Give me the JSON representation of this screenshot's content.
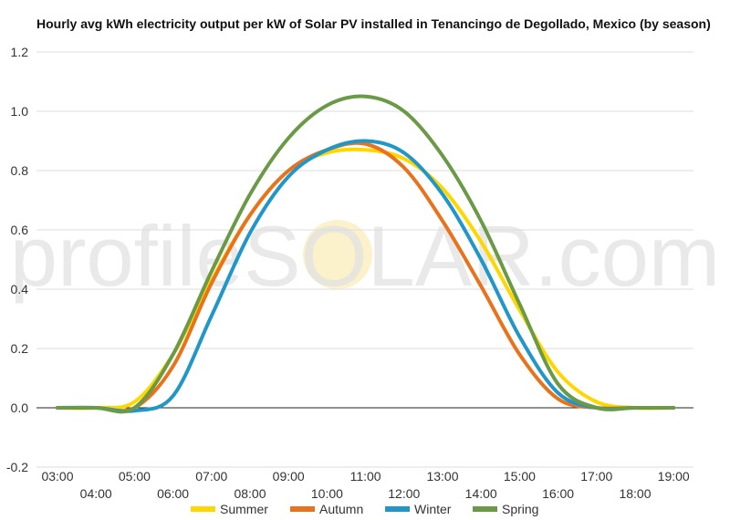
{
  "chart_data": {
    "type": "line",
    "title": "Hourly avg kWh electricity output per kW of Solar PV installed in Tenancingo de Degollado, Mexico (by season)",
    "xlabel": "",
    "ylabel": "",
    "ylim": [
      -0.2,
      1.2
    ],
    "yticks": [
      "-0.2",
      "0.0",
      "0.2",
      "0.4",
      "0.6",
      "0.8",
      "1.0",
      "1.2"
    ],
    "x": [
      "03:00",
      "04:00",
      "05:00",
      "06:00",
      "07:00",
      "08:00",
      "09:00",
      "10:00",
      "11:00",
      "12:00",
      "13:00",
      "14:00",
      "15:00",
      "16:00",
      "17:00",
      "18:00",
      "19:00"
    ],
    "grid": true,
    "legend_position": "bottom",
    "watermark": "profileSOLAR.com",
    "series": [
      {
        "name": "Summer",
        "color": "#FFD700",
        "values": [
          0.0,
          0.0,
          0.02,
          0.18,
          0.43,
          0.65,
          0.8,
          0.86,
          0.87,
          0.84,
          0.74,
          0.56,
          0.33,
          0.12,
          0.02,
          0.0,
          0.0
        ]
      },
      {
        "name": "Autumn",
        "color": "#E8731C",
        "values": [
          0.0,
          0.0,
          0.0,
          0.14,
          0.42,
          0.65,
          0.8,
          0.87,
          0.89,
          0.81,
          0.63,
          0.41,
          0.18,
          0.03,
          0.0,
          0.0,
          0.0
        ]
      },
      {
        "name": "Winter",
        "color": "#2196C9",
        "values": [
          0.0,
          0.0,
          -0.01,
          0.04,
          0.31,
          0.59,
          0.78,
          0.87,
          0.9,
          0.86,
          0.72,
          0.5,
          0.24,
          0.05,
          0.0,
          0.0,
          0.0
        ]
      },
      {
        "name": "Spring",
        "color": "#6B9A46",
        "values": [
          0.0,
          0.0,
          0.0,
          0.18,
          0.46,
          0.72,
          0.91,
          1.02,
          1.05,
          1.0,
          0.85,
          0.63,
          0.35,
          0.08,
          0.0,
          0.0,
          0.0
        ]
      }
    ]
  }
}
